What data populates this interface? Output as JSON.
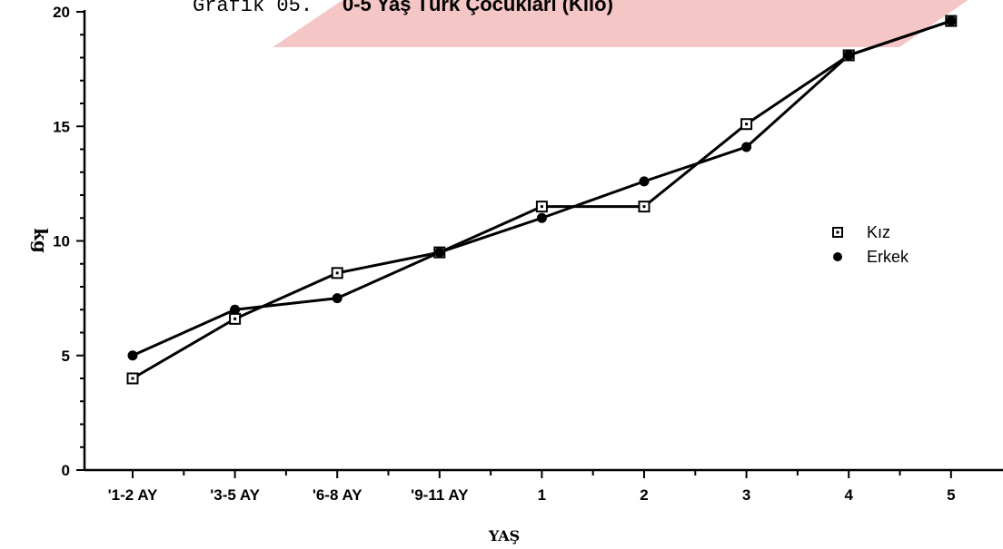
{
  "chart_data": {
    "type": "line",
    "title_prefix": "Grafik 05.",
    "title": "0-5 Yaş Türk Çocukları (Kilo)",
    "xlabel": "YAŞ",
    "ylabel": "kg",
    "categories": [
      "'1-2 AY",
      "'3-5 AY",
      "'6-8  AY",
      "'9-11  AY",
      "1",
      "2",
      "3",
      "4",
      "5"
    ],
    "ylim": [
      0,
      20
    ],
    "yticks": [
      0,
      5,
      10,
      15,
      20
    ],
    "grid": false,
    "legend_position": "right",
    "series": [
      {
        "name": "Kız",
        "marker": "open-square",
        "values": [
          4.0,
          6.6,
          8.6,
          9.5,
          11.5,
          11.5,
          15.1,
          18.1,
          19.6
        ]
      },
      {
        "name": "Erkek",
        "marker": "filled-circle",
        "values": [
          5.0,
          7.0,
          7.5,
          9.5,
          11.0,
          12.6,
          14.1,
          18.1,
          19.6
        ]
      }
    ]
  },
  "watermark": {
    "color": "#f4c6c6"
  }
}
